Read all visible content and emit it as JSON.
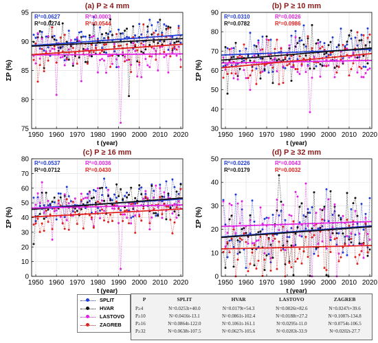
{
  "chart_data": [
    {
      "type": "scatter",
      "panel": "a",
      "title": "(a) P ≥ 4 mm",
      "xlabel": "t (year)",
      "ylabel": "ΣP (%)",
      "xlim": [
        1948,
        2021
      ],
      "ylim": [
        75,
        95
      ],
      "yticks": [
        75,
        80,
        85,
        90,
        95
      ],
      "xticks": [
        1950,
        1960,
        1970,
        1980,
        1990,
        2000,
        2010,
        2020
      ],
      "grid": true,
      "r2_labels": [
        {
          "text": "R²=0.0627",
          "color": "#1f3bd6",
          "anchor": "top-left-1"
        },
        {
          "text": "R²=0.0274",
          "color": "#111111",
          "anchor": "top-left-2"
        },
        {
          "text": "R²=0.0003",
          "color": "#e020e0",
          "anchor": "top-mid-1"
        },
        {
          "text": "R²=0.0544",
          "color": "#e0201e",
          "anchor": "top-mid-2"
        }
      ],
      "trends": [
        {
          "series": "SPLIT",
          "slope": 0.0253,
          "intercept": 40.0
        },
        {
          "series": "HVAR",
          "slope": 0.0179,
          "intercept": 54.3
        },
        {
          "series": "LASTOVO",
          "slope": 0.0026,
          "intercept": 82.6
        },
        {
          "series": "ZAGREB",
          "slope": 0.0247,
          "intercept": 39.6
        }
      ],
      "noise": 2.6,
      "outliers": [
        [
          1991,
          76
        ],
        [
          1995,
          80.6
        ],
        [
          1960,
          80.8
        ]
      ]
    },
    {
      "type": "scatter",
      "panel": "b",
      "title": "(b) P ≥ 10 mm",
      "xlabel": "t (year)",
      "ylabel": "ΣP (%)",
      "xlim": [
        1948,
        2021
      ],
      "ylim": [
        30,
        90
      ],
      "yticks": [
        30,
        40,
        50,
        60,
        70,
        80,
        90
      ],
      "xticks": [
        1950,
        1960,
        1970,
        1980,
        1990,
        2000,
        2010,
        2020
      ],
      "grid": true,
      "r2_labels": [
        {
          "text": "R²=0.0310",
          "color": "#1f3bd6",
          "anchor": "top-left-1"
        },
        {
          "text": "R²=0.0782",
          "color": "#111111",
          "anchor": "top-left-2"
        },
        {
          "text": "R²=0.0026",
          "color": "#e020e0",
          "anchor": "top-mid-1"
        },
        {
          "text": "R²=0.0986",
          "color": "#e0201e",
          "anchor": "top-mid-2"
        }
      ],
      "trends": [
        {
          "series": "SPLIT",
          "slope": 0.0416,
          "intercept": -13.1
        },
        {
          "series": "HVAR",
          "slope": 0.0861,
          "intercept": -102.4
        },
        {
          "series": "LASTOVO",
          "slope": 0.0188,
          "intercept": 27.2
        },
        {
          "series": "ZAGREB",
          "slope": 0.1007,
          "intercept": -134.8
        }
      ],
      "noise": 8,
      "outliers": [
        [
          1991,
          38.5
        ],
        [
          1951,
          48
        ],
        [
          1962,
          50
        ]
      ]
    },
    {
      "type": "scatter",
      "panel": "c",
      "title": "(c) P ≥ 16 mm",
      "xlabel": "t (year)",
      "ylabel": "ΣP (%)",
      "xlim": [
        1948,
        2021
      ],
      "ylim": [
        0,
        80
      ],
      "yticks": [
        0,
        10,
        20,
        30,
        40,
        50,
        60,
        70,
        80
      ],
      "xticks": [
        1950,
        1960,
        1970,
        1980,
        1990,
        2000,
        2010,
        2020
      ],
      "grid": true,
      "r2_labels": [
        {
          "text": "R²=0.0537",
          "color": "#1f3bd6",
          "anchor": "top-left-1"
        },
        {
          "text": "R²=0.0712",
          "color": "#111111",
          "anchor": "top-left-2"
        },
        {
          "text": "R²=0.0036",
          "color": "#e020e0",
          "anchor": "top-mid-1"
        },
        {
          "text": "R²=0.0430",
          "color": "#e0201e",
          "anchor": "top-mid-2"
        }
      ],
      "trends": [
        {
          "series": "SPLIT",
          "slope": 0.0864,
          "intercept": -122.0
        },
        {
          "series": "HVAR",
          "slope": 0.1061,
          "intercept": -161.1
        },
        {
          "series": "LASTOVO",
          "slope": 0.0295,
          "intercept": -11.0
        },
        {
          "series": "ZAGREB",
          "slope": 0.0754,
          "intercept": -106.5
        }
      ],
      "noise": 10,
      "outliers": [
        [
          1991,
          5
        ],
        [
          1949,
          22
        ],
        [
          1958,
          25
        ]
      ]
    },
    {
      "type": "scatter",
      "panel": "d",
      "title": "(d) P ≥ 32 mm",
      "xlabel": "t (year)",
      "ylabel": "ΣP (%)",
      "xlim": [
        1948,
        2021
      ],
      "ylim": [
        0,
        50
      ],
      "yticks": [
        0,
        10,
        20,
        30,
        40,
        50
      ],
      "xticks": [
        1950,
        1960,
        1970,
        1980,
        1990,
        2000,
        2010,
        2020
      ],
      "grid": true,
      "r2_labels": [
        {
          "text": "R²=0.0226",
          "color": "#1f3bd6",
          "anchor": "top-left-1"
        },
        {
          "text": "R²=0.0179",
          "color": "#111111",
          "anchor": "top-left-2"
        },
        {
          "text": "R²=0.0043",
          "color": "#e020e0",
          "anchor": "top-mid-1"
        },
        {
          "text": "R²=0.0032",
          "color": "#e0201e",
          "anchor": "top-mid-2"
        }
      ],
      "trends": [
        {
          "series": "SPLIT",
          "slope": 0.0638,
          "intercept": -107.5
        },
        {
          "series": "HVAR",
          "slope": 0.0627,
          "intercept": -105.6
        },
        {
          "series": "LASTOVO",
          "slope": 0.0283,
          "intercept": -33.9
        },
        {
          "series": "ZAGREB",
          "slope": 0.0202,
          "intercept": -27.7
        }
      ],
      "noise": 11,
      "outliers": [
        [
          1992,
          0
        ],
        [
          2000,
          0
        ],
        [
          2004,
          0
        ],
        [
          1976,
          43
        ]
      ]
    }
  ],
  "series": [
    {
      "name": "SPLIT",
      "color": "#1f3bd6"
    },
    {
      "name": "HVAR",
      "color": "#111111"
    },
    {
      "name": "LASTOVO",
      "color": "#e020e0"
    },
    {
      "name": "ZAGREB",
      "color": "#e0201e"
    }
  ],
  "equation_table": {
    "headers": [
      "P",
      "SPLIT",
      "HVAR",
      "LASTOVO",
      "ZAGREB"
    ],
    "rows": [
      [
        "P≥4",
        "N=0.0253t+40.0",
        "N=0.0179t+54.3",
        "N=0.0026t+82.6",
        "N=0.0247t+39.6"
      ],
      [
        "P≥10",
        "N=0.0416t-13.1",
        "N=0.0861t-102.4",
        "N=0.0188t+27.2",
        "N=0.1007t-134.8"
      ],
      [
        "P≥16",
        "N=0.0864t-122.0",
        "N=0.1061t-161.1",
        "N=0.0295t-11.0",
        "N=0.0754t-106.5"
      ],
      [
        "P≥32",
        "N=0.0638t-107.5",
        "N=0.0627t-105.6",
        "N=0.0283t-33.9",
        "N=0.0202t-27.7"
      ]
    ]
  }
}
